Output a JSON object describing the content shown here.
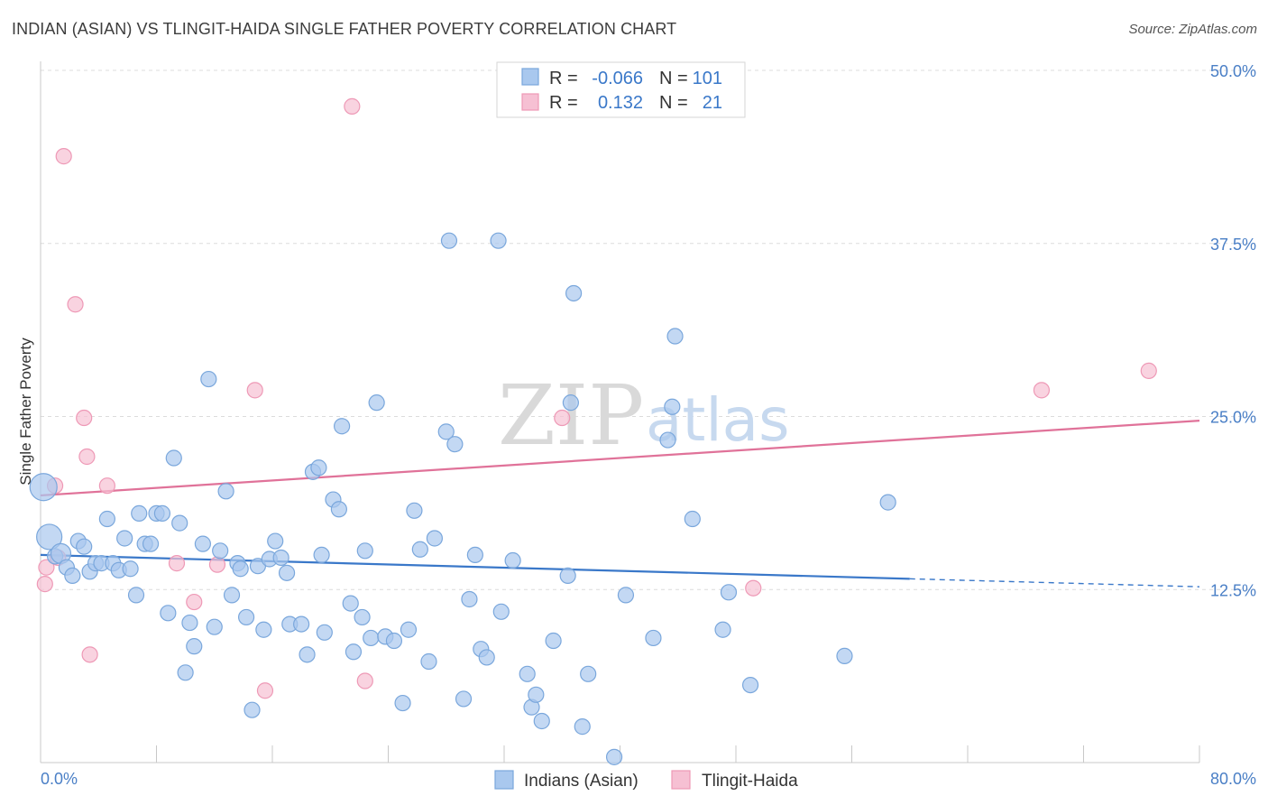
{
  "header": {
    "title": "INDIAN (ASIAN) VS TLINGIT-HAIDA SINGLE FATHER POVERTY CORRELATION CHART",
    "source": "Source: ZipAtlas.com"
  },
  "watermark": {
    "zip": "ZIP",
    "atlas": "atlas"
  },
  "colors": {
    "blue_fill": "#a9c8ee",
    "blue_stroke": "#7aa7dc",
    "blue_line": "#3a78c9",
    "pink_fill": "#f6c0d3",
    "pink_stroke": "#ee99b6",
    "pink_line": "#e07299",
    "tick_label": "#4a7fc6",
    "grid": "#dcdcdc"
  },
  "legend": {
    "rows": [
      {
        "r_label": "R =",
        "r_value": "-0.066",
        "n_label": "N =",
        "n_value": "101",
        "series": "blue"
      },
      {
        "r_label": "R =",
        "r_value": "0.132",
        "n_label": "N =",
        "n_value": "21",
        "series": "pink"
      }
    ]
  },
  "chart_data": {
    "type": "scatter",
    "title": "INDIAN (ASIAN) VS TLINGIT-HAIDA SINGLE FATHER POVERTY CORRELATION CHART",
    "xlabel": "",
    "ylabel": "Single Father Poverty",
    "xlim": [
      0,
      80
    ],
    "ylim": [
      0,
      50
    ],
    "x_tick_labels": [
      "0.0%",
      "80.0%"
    ],
    "y_ticks": [
      12.5,
      25.0,
      37.5,
      50.0
    ],
    "y_tick_labels": [
      "12.5%",
      "25.0%",
      "37.5%",
      "50.0%"
    ],
    "grid": true,
    "series": [
      {
        "name": "Indians (Asian)",
        "color": "#a9c8ee",
        "points": [
          [
            0.2,
            19.9
          ],
          [
            0.6,
            16.3
          ],
          [
            1.0,
            14.9
          ],
          [
            1.4,
            15.1
          ],
          [
            1.8,
            14.1
          ],
          [
            2.2,
            13.5
          ],
          [
            2.6,
            16.0
          ],
          [
            3.0,
            15.6
          ],
          [
            3.4,
            13.8
          ],
          [
            3.8,
            14.4
          ],
          [
            4.2,
            14.4
          ],
          [
            4.6,
            17.6
          ],
          [
            5.0,
            14.4
          ],
          [
            5.4,
            13.9
          ],
          [
            5.8,
            16.2
          ],
          [
            6.2,
            14.0
          ],
          [
            6.6,
            12.1
          ],
          [
            6.8,
            18.0
          ],
          [
            7.2,
            15.8
          ],
          [
            7.6,
            15.8
          ],
          [
            8.0,
            18.0
          ],
          [
            8.4,
            18.0
          ],
          [
            8.8,
            10.8
          ],
          [
            9.2,
            22.0
          ],
          [
            9.6,
            17.3
          ],
          [
            10.0,
            6.5
          ],
          [
            10.3,
            10.1
          ],
          [
            10.6,
            8.4
          ],
          [
            11.2,
            15.8
          ],
          [
            11.6,
            27.7
          ],
          [
            12.0,
            9.8
          ],
          [
            12.4,
            15.3
          ],
          [
            12.8,
            19.6
          ],
          [
            13.2,
            12.1
          ],
          [
            13.6,
            14.4
          ],
          [
            13.8,
            14.0
          ],
          [
            14.2,
            10.5
          ],
          [
            14.6,
            3.8
          ],
          [
            15.0,
            14.2
          ],
          [
            15.4,
            9.6
          ],
          [
            15.8,
            14.7
          ],
          [
            16.2,
            16.0
          ],
          [
            16.6,
            14.8
          ],
          [
            17.0,
            13.7
          ],
          [
            17.2,
            10.0
          ],
          [
            18.0,
            10.0
          ],
          [
            18.4,
            7.8
          ],
          [
            18.8,
            21.0
          ],
          [
            19.2,
            21.3
          ],
          [
            19.4,
            15.0
          ],
          [
            19.6,
            9.4
          ],
          [
            20.2,
            19.0
          ],
          [
            20.6,
            18.3
          ],
          [
            20.8,
            24.3
          ],
          [
            21.4,
            11.5
          ],
          [
            21.6,
            8.0
          ],
          [
            22.2,
            10.5
          ],
          [
            22.4,
            15.3
          ],
          [
            22.8,
            9.0
          ],
          [
            23.2,
            26.0
          ],
          [
            23.8,
            9.1
          ],
          [
            24.4,
            8.8
          ],
          [
            25.0,
            4.3
          ],
          [
            25.4,
            9.6
          ],
          [
            25.8,
            18.2
          ],
          [
            26.2,
            15.4
          ],
          [
            26.8,
            7.3
          ],
          [
            27.2,
            16.2
          ],
          [
            28.0,
            23.9
          ],
          [
            28.2,
            37.7
          ],
          [
            28.6,
            23.0
          ],
          [
            29.2,
            4.6
          ],
          [
            29.6,
            11.8
          ],
          [
            30.0,
            15.0
          ],
          [
            30.4,
            8.2
          ],
          [
            30.8,
            7.6
          ],
          [
            31.6,
            37.7
          ],
          [
            31.8,
            10.9
          ],
          [
            32.6,
            14.6
          ],
          [
            33.6,
            6.4
          ],
          [
            33.9,
            4.0
          ],
          [
            34.2,
            4.9
          ],
          [
            34.6,
            3.0
          ],
          [
            35.4,
            8.8
          ],
          [
            36.4,
            13.5
          ],
          [
            36.6,
            26.0
          ],
          [
            36.8,
            33.9
          ],
          [
            37.4,
            2.6
          ],
          [
            37.8,
            6.4
          ],
          [
            39.6,
            0.4
          ],
          [
            40.4,
            12.1
          ],
          [
            42.3,
            9.0
          ],
          [
            43.3,
            23.3
          ],
          [
            43.6,
            25.7
          ],
          [
            43.8,
            30.8
          ],
          [
            45.0,
            17.6
          ],
          [
            47.1,
            9.6
          ],
          [
            47.5,
            12.3
          ],
          [
            49.0,
            5.6
          ],
          [
            55.5,
            7.7
          ],
          [
            58.5,
            18.8
          ]
        ],
        "trend": {
          "x": [
            0,
            80
          ],
          "y": [
            15.0,
            12.7
          ],
          "solid_until_x": 60
        }
      },
      {
        "name": "Tlingit-Haida",
        "color": "#f6c0d3",
        "points": [
          [
            0.3,
            12.9
          ],
          [
            0.4,
            14.1
          ],
          [
            1.0,
            20.0
          ],
          [
            1.2,
            14.8
          ],
          [
            1.6,
            43.8
          ],
          [
            2.4,
            33.1
          ],
          [
            3.0,
            24.9
          ],
          [
            3.2,
            22.1
          ],
          [
            3.4,
            7.8
          ],
          [
            4.6,
            20.0
          ],
          [
            9.4,
            14.4
          ],
          [
            10.6,
            11.6
          ],
          [
            12.2,
            14.3
          ],
          [
            14.8,
            26.9
          ],
          [
            15.5,
            5.2
          ],
          [
            21.5,
            47.4
          ],
          [
            22.4,
            5.9
          ],
          [
            36.0,
            24.9
          ],
          [
            49.2,
            12.6
          ],
          [
            69.1,
            26.9
          ],
          [
            76.5,
            28.3
          ]
        ],
        "trend": {
          "x": [
            0,
            80
          ],
          "y": [
            19.3,
            24.7
          ]
        }
      }
    ]
  },
  "bottom_legend": [
    {
      "label": "Indians (Asian)",
      "series": "blue"
    },
    {
      "label": "Tlingit-Haida",
      "series": "pink"
    }
  ]
}
